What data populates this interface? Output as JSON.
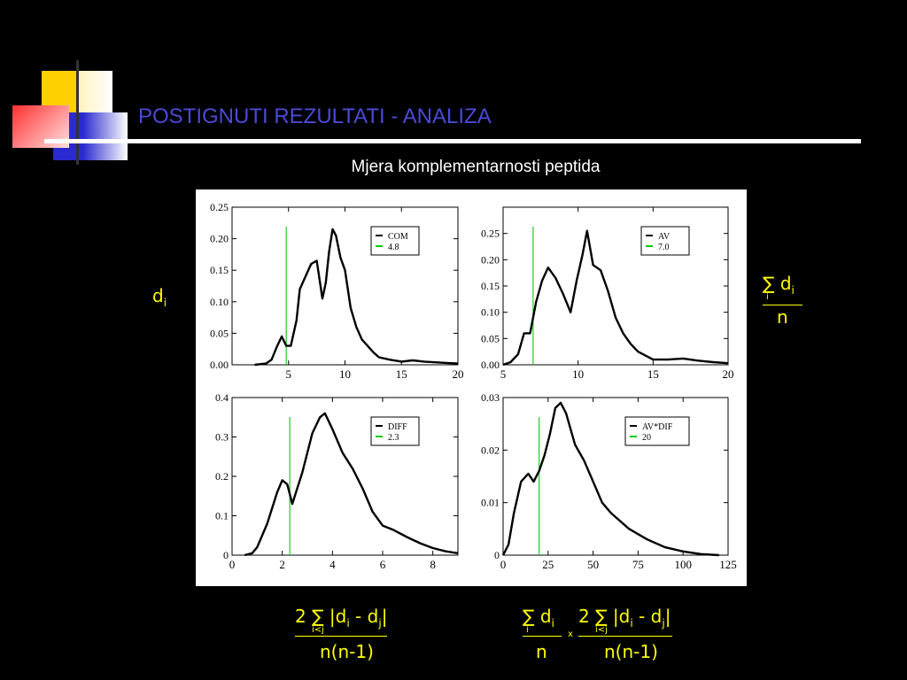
{
  "slide": {
    "title": "POSTIGNUTI REZULTATI - ANALIZA",
    "subtitle": "Mjera komplementarnosti peptida"
  },
  "formulas": {
    "left_symbol": "d",
    "left_sub": "i",
    "right_num": "∑ d",
    "right_num_sub": "i",
    "right_sum_index": "i",
    "right_den": "n",
    "bottom_left_num": "2 ∑ |d",
    "bottom_left_sub_i": "i",
    "bottom_left_mid": " - d",
    "bottom_left_sub_j": "j",
    "bottom_left_tail": "|",
    "bottom_left_sum_index": "i<j",
    "bottom_left_den": "n(n-1)",
    "bottom_right_a_num": "∑ d",
    "bottom_right_a_sub": "i",
    "bottom_right_a_index": "i",
    "bottom_right_a_den": "n",
    "bottom_right_times": "x",
    "bottom_right_b_num": "2 ∑ |d",
    "bottom_right_b_sub_i": "i",
    "bottom_right_b_mid": " - d",
    "bottom_right_b_sub_j": "j",
    "bottom_right_b_tail": "|",
    "bottom_right_b_index": "i<j",
    "bottom_right_b_den": "n(n-1)"
  },
  "chart_data": [
    {
      "type": "line",
      "xlim": [
        0,
        20
      ],
      "ylim": [
        0,
        0.25
      ],
      "xticks": [
        5,
        10,
        15,
        20
      ],
      "yticks": [
        0.0,
        0.05,
        0.1,
        0.15,
        0.2,
        0.25
      ],
      "ytick_labels": [
        "0.00",
        "0.05",
        "0.10",
        "0.15",
        "0.20",
        "0.25"
      ],
      "legend": [
        {
          "label": "COM",
          "color": "#000000"
        },
        {
          "label": "4.8",
          "color": "#00cc00"
        }
      ],
      "legend_position": "top-right",
      "vline": 4.8,
      "series": [
        {
          "name": "COM",
          "x": [
            2,
            3,
            3.5,
            4,
            4.4,
            4.8,
            5.2,
            5.7,
            6,
            6.5,
            7,
            7.5,
            8,
            8.3,
            8.6,
            8.9,
            9.2,
            9.6,
            10,
            10.5,
            11,
            11.5,
            12,
            12.5,
            13,
            14,
            15,
            16,
            17,
            18,
            19,
            20
          ],
          "y": [
            0,
            0.002,
            0.008,
            0.03,
            0.045,
            0.03,
            0.03,
            0.07,
            0.12,
            0.14,
            0.16,
            0.165,
            0.105,
            0.13,
            0.18,
            0.215,
            0.205,
            0.17,
            0.15,
            0.09,
            0.06,
            0.04,
            0.03,
            0.02,
            0.012,
            0.008,
            0.005,
            0.007,
            0.005,
            0.004,
            0.003,
            0.002
          ]
        }
      ]
    },
    {
      "type": "line",
      "xlim": [
        5,
        20
      ],
      "ylim": [
        0,
        0.3
      ],
      "xticks": [
        5,
        10,
        15,
        20
      ],
      "yticks": [
        0.0,
        0.05,
        0.1,
        0.15,
        0.2,
        0.25
      ],
      "ytick_labels": [
        "0.00",
        "0.05",
        "0.10",
        "0.15",
        "0.20",
        "0.25"
      ],
      "legend": [
        {
          "label": "AV",
          "color": "#000000"
        },
        {
          "label": "7.0",
          "color": "#00cc00"
        }
      ],
      "legend_position": "top-right",
      "vline": 7.0,
      "series": [
        {
          "name": "AV",
          "x": [
            5,
            5.5,
            6,
            6.4,
            6.8,
            7.2,
            7.6,
            8,
            8.5,
            9,
            9.5,
            9.9,
            10.3,
            10.6,
            11,
            11.5,
            12,
            12.5,
            13,
            13.5,
            14,
            15,
            16,
            17,
            18,
            19,
            20
          ],
          "y": [
            0,
            0.005,
            0.02,
            0.06,
            0.06,
            0.12,
            0.16,
            0.185,
            0.165,
            0.135,
            0.1,
            0.16,
            0.21,
            0.255,
            0.19,
            0.18,
            0.14,
            0.09,
            0.06,
            0.04,
            0.025,
            0.01,
            0.01,
            0.012,
            0.008,
            0.005,
            0.003
          ]
        }
      ]
    },
    {
      "type": "line",
      "xlim": [
        0,
        9
      ],
      "ylim": [
        0,
        0.4
      ],
      "xticks": [
        0,
        2,
        4,
        6,
        8
      ],
      "yticks": [
        0,
        0.1,
        0.2,
        0.3,
        0.4
      ],
      "ytick_labels": [
        "0",
        "0.1",
        "0.2",
        "0.3",
        "0.4"
      ],
      "legend": [
        {
          "label": "DIFF",
          "color": "#000000"
        },
        {
          "label": "2.3",
          "color": "#00cc00"
        }
      ],
      "legend_position": "top-right",
      "vline": 2.3,
      "series": [
        {
          "name": "DIFF",
          "x": [
            0.5,
            0.8,
            1,
            1.4,
            1.8,
            2,
            2.2,
            2.4,
            2.8,
            3.2,
            3.5,
            3.7,
            4,
            4.4,
            4.8,
            5.2,
            5.6,
            6,
            6.4,
            7,
            7.5,
            8,
            8.5,
            9
          ],
          "y": [
            0,
            0.005,
            0.02,
            0.08,
            0.16,
            0.19,
            0.18,
            0.13,
            0.21,
            0.31,
            0.35,
            0.36,
            0.32,
            0.26,
            0.22,
            0.17,
            0.11,
            0.075,
            0.065,
            0.045,
            0.03,
            0.018,
            0.01,
            0.005
          ]
        }
      ]
    },
    {
      "type": "line",
      "xlim": [
        0,
        125
      ],
      "ylim": [
        0,
        0.03
      ],
      "xticks": [
        0,
        25,
        50,
        75,
        100,
        125
      ],
      "yticks": [
        0,
        0.01,
        0.02,
        0.03
      ],
      "ytick_labels": [
        "0",
        "0.01",
        "0.02",
        "0.03"
      ],
      "legend": [
        {
          "label": "AV*DIF",
          "color": "#000000"
        },
        {
          "label": "20",
          "color": "#00cc00"
        }
      ],
      "legend_position": "top-right",
      "vline": 20,
      "series": [
        {
          "name": "AV*DIF",
          "x": [
            0,
            3,
            6,
            10,
            14,
            17,
            20,
            23,
            26,
            29,
            32,
            35,
            40,
            45,
            50,
            55,
            60,
            70,
            80,
            90,
            100,
            110,
            120
          ],
          "y": [
            0,
            0.002,
            0.008,
            0.014,
            0.0155,
            0.014,
            0.016,
            0.019,
            0.023,
            0.028,
            0.029,
            0.027,
            0.021,
            0.018,
            0.014,
            0.01,
            0.008,
            0.005,
            0.003,
            0.0015,
            0.0007,
            0.0002,
            0
          ]
        }
      ]
    }
  ]
}
